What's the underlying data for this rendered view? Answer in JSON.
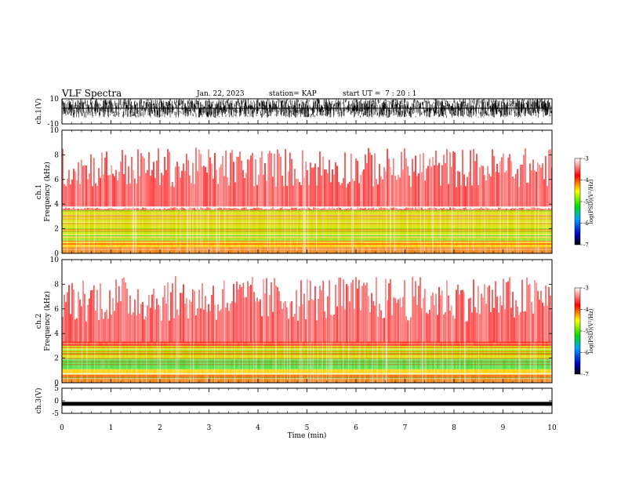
{
  "header": {
    "title": "VLF Spectra",
    "date": "Jan. 22, 2023",
    "station": "station= KAP",
    "start": "start UT =  7 : 20 : 1"
  },
  "chart_data": [
    {
      "type": "line",
      "name": "ch1-waveform",
      "ylabel": "ch.1(V)",
      "ylim": [
        -10,
        10
      ],
      "yticks": [
        10,
        -10
      ],
      "xlim": [
        0,
        10
      ],
      "baseline_level": 2.5,
      "amplitude_range": [
        -5,
        10
      ]
    },
    {
      "type": "heatmap",
      "name": "ch1-spectrogram",
      "ylabel": "ch.1\nFrequency (kHz)",
      "ylim": [
        0,
        10
      ],
      "yticks": [
        0,
        2,
        4,
        6,
        8,
        10
      ],
      "xlim": [
        0,
        10
      ],
      "bands": [
        {
          "from": 0.0,
          "to": 0.5,
          "color": "#f08010"
        },
        {
          "from": 0.5,
          "to": 0.9,
          "color": "#ffd000"
        },
        {
          "from": 0.9,
          "to": 1.2,
          "color": "#e0e020"
        },
        {
          "from": 1.2,
          "to": 3.5,
          "color": "#d8e000"
        },
        {
          "from": 3.5,
          "to": 3.8,
          "color": "#ff3010"
        },
        {
          "from": 3.8,
          "to": 10.0,
          "color": "#ff2020"
        }
      ],
      "colorbar": {
        "label": "log(PSD)(V²/Hz)",
        "ticks": [
          -3,
          -4,
          -5,
          -6,
          -7
        ],
        "range": [
          -7,
          -3
        ]
      }
    },
    {
      "type": "heatmap",
      "name": "ch2-spectrogram",
      "ylabel": "ch.2\nFrequency (kHz)",
      "ylim": [
        0,
        10
      ],
      "yticks": [
        0,
        2,
        4,
        6,
        8,
        10
      ],
      "xlim": [
        0,
        10
      ],
      "bands": [
        {
          "from": 0.0,
          "to": 0.6,
          "color": "#f08010"
        },
        {
          "from": 0.6,
          "to": 1.1,
          "color": "#ffd000"
        },
        {
          "from": 1.1,
          "to": 1.9,
          "color": "#50e040"
        },
        {
          "from": 1.9,
          "to": 3.0,
          "color": "#d8e000"
        },
        {
          "from": 3.0,
          "to": 3.3,
          "color": "#ff3010"
        },
        {
          "from": 3.3,
          "to": 10.0,
          "color": "#ff2020"
        }
      ],
      "colorbar": {
        "label": "log(PSD)(V²/Hz)",
        "ticks": [
          -3,
          -4,
          -5,
          -6,
          -7
        ],
        "range": [
          -7,
          -3
        ]
      }
    },
    {
      "type": "line",
      "name": "ch3-waveform",
      "ylabel": "ch.3(V)",
      "ylim": [
        -5,
        5
      ],
      "yticks": [
        5,
        0,
        -5
      ],
      "xlim": [
        0,
        10
      ],
      "baseline_level": -1.2,
      "amplitude_range": [
        -1.8,
        -0.6
      ]
    }
  ],
  "xaxis": {
    "label": "Time (min)",
    "ticks": [
      0,
      1,
      2,
      3,
      4,
      5,
      6,
      7,
      8,
      9,
      10
    ]
  },
  "colors": {
    "colorbar_stops": [
      "#000000",
      "#0000c0",
      "#00a0ff",
      "#00e000",
      "#ffff00",
      "#ff0000",
      "#ffffff"
    ]
  }
}
